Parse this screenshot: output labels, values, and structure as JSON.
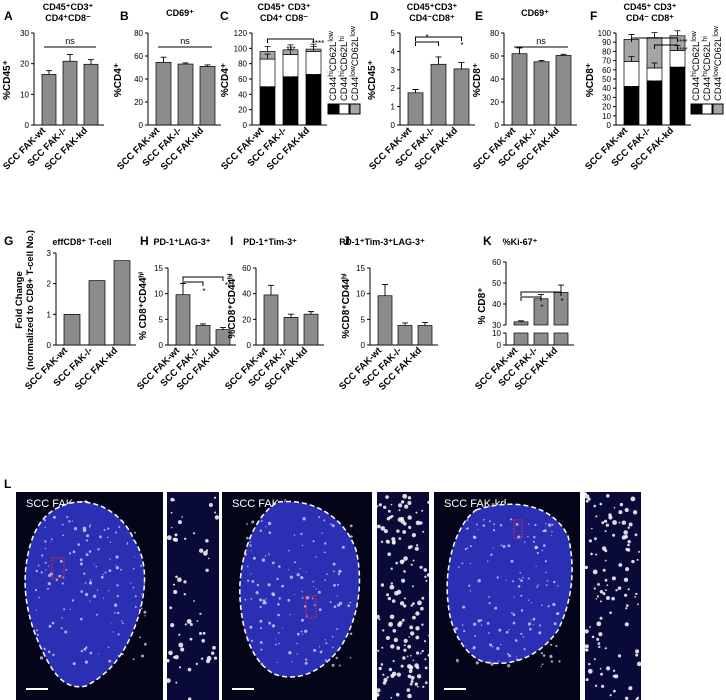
{
  "panel_letters": [
    "A",
    "B",
    "C",
    "D",
    "E",
    "F",
    "G",
    "H",
    "I",
    "J",
    "K",
    "L"
  ],
  "sig": {
    "ns": "ns",
    "one": "*",
    "two": "**",
    "three": "***",
    "four": "****"
  },
  "chart_data": [
    {
      "id": "A",
      "type": "bar",
      "title_lines": [
        "CD45⁺CD3⁺",
        "CD4⁺CD8⁻"
      ],
      "ylabel": "%CD45⁺",
      "categories": [
        "SCC FAK-wt",
        "SCC FAK-/-",
        "SCC FAK-kd"
      ],
      "values": [
        16.5,
        20.8,
        19.8
      ],
      "errors": [
        1.2,
        2.2,
        1.5
      ],
      "ylim": [
        0,
        30
      ],
      "yticks": [
        "0",
        "10",
        "20",
        "30"
      ]
    },
    {
      "id": "B",
      "type": "bar",
      "title_lines": [
        "CD69⁺"
      ],
      "ylabel": "%CD4⁺",
      "categories": [
        "SCC FAK-wt",
        "SCC FAK-/-",
        "SCC FAK-kd"
      ],
      "values": [
        54.5,
        53,
        51
      ],
      "errors": [
        4.5,
        1,
        1.2
      ],
      "ylim": [
        0,
        80
      ],
      "yticks": [
        "0",
        "20",
        "40",
        "60",
        "80"
      ]
    },
    {
      "id": "C",
      "type": "bar",
      "stacked": true,
      "title_lines": [
        "CD45⁺ CD3⁺",
        "CD4⁺ CD8⁻"
      ],
      "ylabel": "%CD4⁺",
      "categories": [
        "SCC FAK-wt",
        "SCC FAK-/-",
        "SCC FAK-kd"
      ],
      "series": [
        {
          "name": "CD44hiCD62Llow",
          "values": [
            50,
            63,
            66
          ]
        },
        {
          "name": "CD44hiCD62Lhi",
          "values": [
            36,
            29,
            30
          ]
        },
        {
          "name": "CD44lowCD62Llow",
          "values": [
            10,
            6,
            3
          ]
        }
      ],
      "ylim": [
        0,
        120
      ],
      "yticks": [
        "0",
        "20",
        "40",
        "60",
        "80",
        "100",
        "120"
      ]
    },
    {
      "id": "D",
      "type": "bar",
      "title_lines": [
        "CD45⁺CD3⁺",
        "CD4⁻CD8⁺"
      ],
      "ylabel": "%CD45⁺",
      "categories": [
        "SCC FAK-wt",
        "SCC FAK-/-",
        "SCC FAK-kd"
      ],
      "values": [
        1.75,
        3.3,
        3.05
      ],
      "errors": [
        0.18,
        0.4,
        0.35
      ],
      "ylim": [
        0,
        5
      ],
      "yticks": [
        "0",
        "1",
        "2",
        "3",
        "4",
        "5"
      ]
    },
    {
      "id": "E",
      "type": "bar",
      "title_lines": [
        "CD69⁺"
      ],
      "ylabel": "%CD8⁺",
      "categories": [
        "SCC FAK-wt",
        "SCC FAK-/-",
        "SCC FAK-kd"
      ],
      "values": [
        62,
        55,
        60.5
      ],
      "errors": [
        5,
        1,
        1
      ],
      "ylim": [
        0,
        80
      ],
      "yticks": [
        "0",
        "20",
        "40",
        "60",
        "80"
      ]
    },
    {
      "id": "F",
      "type": "bar",
      "stacked": true,
      "title_lines": [
        "CD45⁺ CD3⁺",
        "CD4⁻ CD8⁺"
      ],
      "ylabel": "%CD8⁺",
      "categories": [
        "SCC FAK-wt",
        "SCC FAK-/-",
        "SCC FAK-kd"
      ],
      "series": [
        {
          "name": "CD44hiCD62Llow",
          "values": [
            42,
            48,
            63
          ]
        },
        {
          "name": "CD44hiCD62Lhi",
          "values": [
            27,
            14,
            18
          ]
        },
        {
          "name": "CD44lowCD62Llow",
          "values": [
            24,
            33,
            16
          ]
        }
      ],
      "ylim": [
        0,
        100
      ],
      "yticks": [
        "0",
        "10",
        "20",
        "30",
        "40",
        "50",
        "60",
        "70",
        "80",
        "90",
        "100"
      ]
    },
    {
      "id": "G",
      "type": "bar",
      "title_lines": [
        "effCD8⁺ T-cell"
      ],
      "ylabel_lines": [
        "Fold Change",
        "(normalized to CD8+ T-cell No.)"
      ],
      "categories": [
        "SCC FAK-wt",
        "SCC FAK-/-",
        "SCC FAK-kd"
      ],
      "values": [
        1,
        2.1,
        2.75
      ],
      "ylim": [
        0,
        3
      ],
      "yticks": [
        "0",
        "1",
        "2",
        "3"
      ]
    },
    {
      "id": "H",
      "type": "bar",
      "title_lines": [
        "PD-1⁺LAG-3⁺"
      ],
      "ylabel": "% CD8⁺CD44ʰⁱ",
      "categories": [
        "SCC FAK-wt",
        "SCC FAK-/-",
        "SCC FAK-kd"
      ],
      "values": [
        9.8,
        3.8,
        3.0
      ],
      "errors": [
        2.2,
        0.3,
        0.4
      ],
      "ylim": [
        0,
        15
      ],
      "yticks": [
        "0",
        "5",
        "10",
        "15"
      ]
    },
    {
      "id": "I",
      "type": "bar",
      "title_lines": [
        "PD-1⁺Tim-3⁺"
      ],
      "ylabel": "%CD8⁺CD44ʰⁱ",
      "categories": [
        "SCC FAK-wt",
        "SCC FAK-/-",
        "SCC FAK-kd"
      ],
      "values": [
        39,
        21.5,
        24
      ],
      "errors": [
        7.5,
        2.5,
        2
      ],
      "ylim": [
        0,
        60
      ],
      "yticks": [
        "0",
        "20",
        "40",
        "60"
      ]
    },
    {
      "id": "J",
      "type": "bar",
      "title_lines": [
        "PD-1⁺Tim-3⁺LAG-3⁺"
      ],
      "ylabel": "%CD8⁺CD44ʰⁱ",
      "categories": [
        "SCC FAK-wt",
        "SCC FAK-/-",
        "SCC FAK-kd"
      ],
      "values": [
        9.6,
        3.8,
        3.8
      ],
      "errors": [
        2.2,
        0.5,
        0.6
      ],
      "ylim": [
        0,
        15
      ],
      "yticks": [
        "0",
        "5",
        "10",
        "15"
      ]
    },
    {
      "id": "K",
      "type": "bar",
      "broken_axis": true,
      "title_lines": [
        "%Ki-67⁺"
      ],
      "ylabel": "% CD8⁺",
      "categories": [
        "SCC FAK-wt",
        "SCC FAK-/-",
        "SCC FAK-kd"
      ],
      "values": [
        31.5,
        42.5,
        45.5
      ],
      "errors": [
        0.5,
        2,
        3.5
      ],
      "yticks": [
        "0",
        "10",
        "30",
        "40",
        "50",
        "60"
      ]
    }
  ],
  "micrographs": [
    {
      "label": "SCC FAK-wt"
    },
    {
      "label": "SCC FAK-/-"
    },
    {
      "label": "SCC FAK-kd"
    }
  ]
}
